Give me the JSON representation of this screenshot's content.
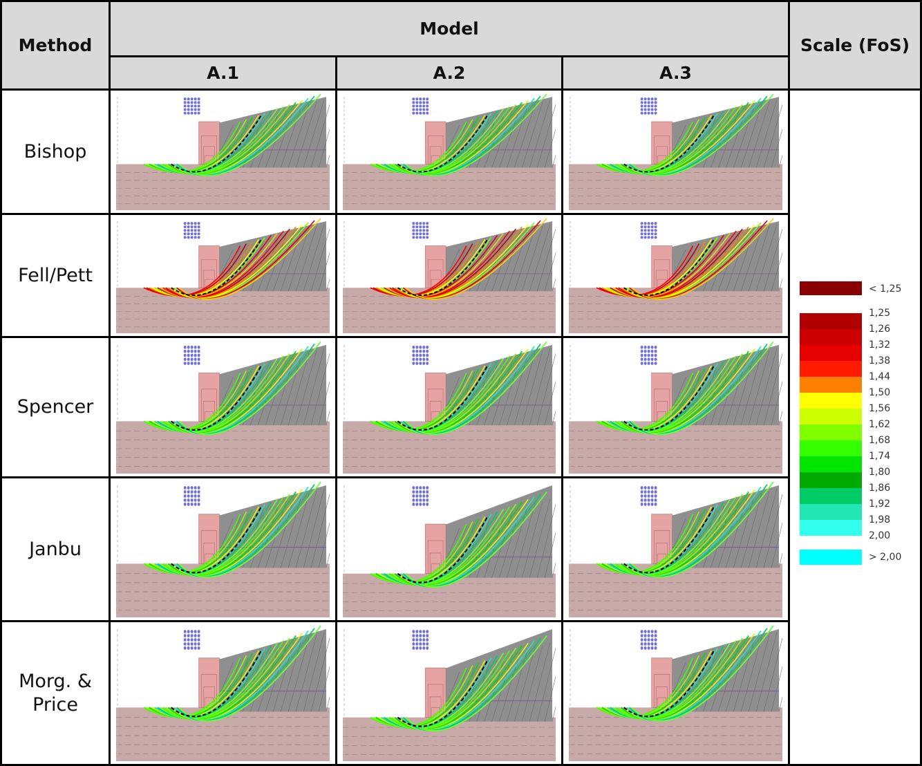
{
  "header": {
    "method": "Method",
    "model": "Model",
    "scale": "Scale (FoS)",
    "models": [
      "A.1",
      "A.2",
      "A.3"
    ]
  },
  "rows": [
    {
      "method": "Bishop"
    },
    {
      "method": "Fell/Pett"
    },
    {
      "method": "Spencer"
    },
    {
      "method": "Janbu"
    },
    {
      "method": "Morg. & Price"
    }
  ],
  "legend": {
    "below": {
      "label": "< 1,25",
      "color": "#8b0000"
    },
    "labels": [
      "1,25",
      "1,26",
      "1,32",
      "1,38",
      "1,44",
      "1,50",
      "1,56",
      "1,62",
      "1,68",
      "1,74",
      "1,80",
      "1,86",
      "1,92",
      "1,98",
      "2,00"
    ],
    "colors": [
      "#b00000",
      "#cc0000",
      "#e60000",
      "#ff1a00",
      "#ff8000",
      "#ffff00",
      "#ccff00",
      "#80ff00",
      "#33ff00",
      "#00e600",
      "#00aa00",
      "#00cc66",
      "#22e6b3",
      "#33ffee"
    ],
    "above": {
      "label": "> 2,00",
      "color": "#00ffff"
    }
  }
}
